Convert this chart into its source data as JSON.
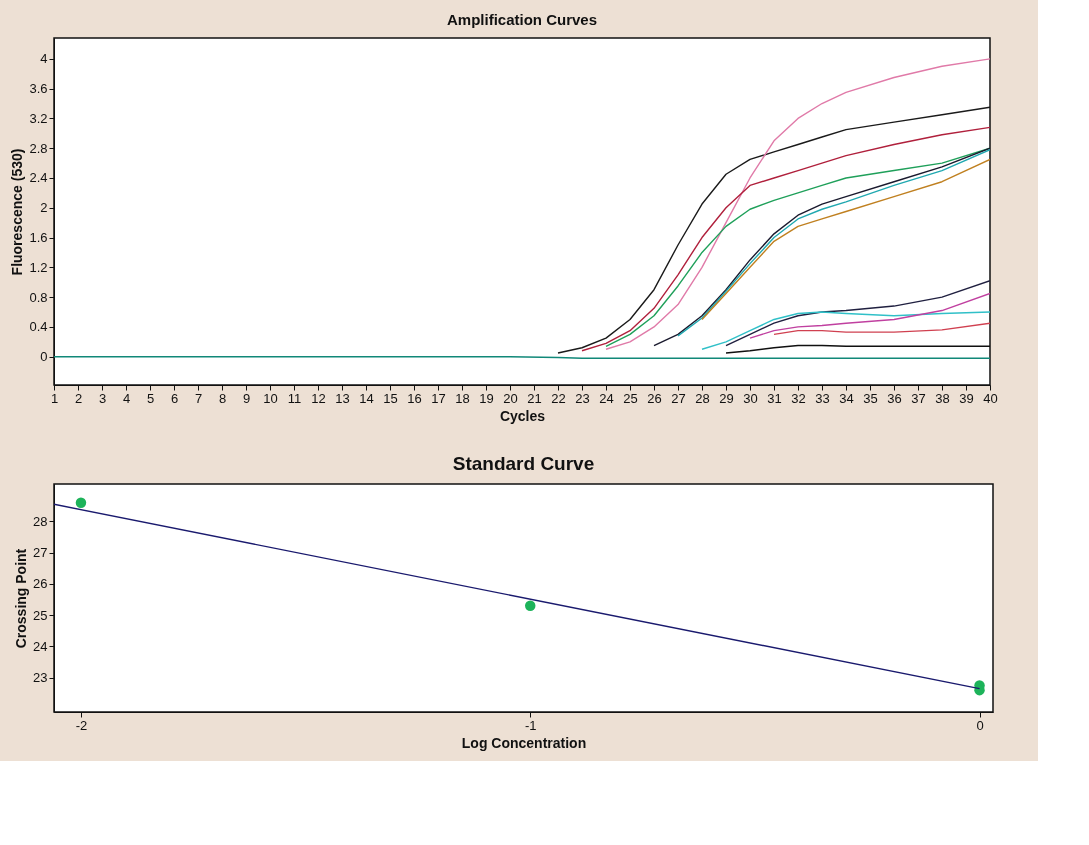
{
  "chart_data": [
    {
      "type": "line",
      "title": "Amplification Curves",
      "xlabel": "Cycles",
      "ylabel": "Fluorescence (530)",
      "xlim": [
        1,
        40
      ],
      "xticks": [
        1,
        2,
        3,
        4,
        5,
        6,
        7,
        8,
        9,
        10,
        11,
        12,
        13,
        14,
        15,
        16,
        17,
        18,
        19,
        20,
        21,
        22,
        23,
        24,
        25,
        26,
        27,
        28,
        29,
        30,
        31,
        32,
        33,
        34,
        35,
        36,
        37,
        38,
        39,
        40
      ],
      "ylim": [
        -0.38,
        4.28
      ],
      "yticks": [
        0,
        0.4,
        0.8,
        1.2,
        1.6,
        2,
        2.4,
        2.8,
        3.2,
        3.6,
        4
      ],
      "series": [
        {
          "color": "#1a1a1a",
          "x": [
            22,
            23,
            24,
            25,
            26,
            27,
            28,
            29,
            30,
            31,
            32,
            33,
            34,
            36,
            38,
            40
          ],
          "values": [
            0.05,
            0.12,
            0.25,
            0.5,
            0.9,
            1.5,
            2.05,
            2.45,
            2.65,
            2.75,
            2.85,
            2.95,
            3.05,
            3.15,
            3.25,
            3.35
          ]
        },
        {
          "color": "#e07aa8",
          "x": [
            24,
            25,
            26,
            27,
            28,
            29,
            30,
            31,
            32,
            33,
            34,
            36,
            38,
            40
          ],
          "values": [
            0.1,
            0.2,
            0.4,
            0.7,
            1.2,
            1.8,
            2.4,
            2.9,
            3.2,
            3.4,
            3.55,
            3.75,
            3.9,
            4.0
          ]
        },
        {
          "color": "#b0203c",
          "x": [
            23,
            24,
            25,
            26,
            27,
            28,
            29,
            30,
            31,
            32,
            33,
            34,
            36,
            38,
            40
          ],
          "values": [
            0.08,
            0.18,
            0.35,
            0.65,
            1.1,
            1.6,
            2.0,
            2.3,
            2.4,
            2.5,
            2.6,
            2.7,
            2.85,
            2.98,
            3.08
          ]
        },
        {
          "color": "#1fa05a",
          "x": [
            24,
            25,
            26,
            27,
            28,
            29,
            30,
            31,
            32,
            33,
            34,
            36,
            38,
            40
          ],
          "values": [
            0.14,
            0.3,
            0.55,
            0.95,
            1.4,
            1.75,
            1.98,
            2.1,
            2.2,
            2.3,
            2.4,
            2.5,
            2.6,
            2.8
          ]
        },
        {
          "color": "#1a1a2e",
          "x": [
            26,
            27,
            28,
            29,
            30,
            31,
            32,
            33,
            34,
            36,
            38,
            40
          ],
          "values": [
            0.15,
            0.3,
            0.55,
            0.9,
            1.3,
            1.65,
            1.9,
            2.05,
            2.15,
            2.35,
            2.55,
            2.8
          ]
        },
        {
          "color": "#20a8b0",
          "x": [
            27,
            28,
            29,
            30,
            31,
            32,
            33,
            34,
            36,
            38,
            40
          ],
          "values": [
            0.28,
            0.52,
            0.88,
            1.25,
            1.6,
            1.85,
            1.98,
            2.08,
            2.3,
            2.5,
            2.78
          ]
        },
        {
          "color": "#c08020",
          "x": [
            28,
            29,
            30,
            31,
            32,
            33,
            34,
            36,
            38,
            40
          ],
          "values": [
            0.5,
            0.85,
            1.2,
            1.55,
            1.75,
            1.85,
            1.95,
            2.15,
            2.35,
            2.65
          ]
        },
        {
          "color": "#202040",
          "x": [
            29,
            30,
            31,
            32,
            33,
            34,
            36,
            38,
            40
          ],
          "values": [
            0.15,
            0.3,
            0.45,
            0.55,
            0.6,
            0.62,
            0.68,
            0.8,
            1.02
          ]
        },
        {
          "color": "#30c0c8",
          "x": [
            28,
            29,
            30,
            31,
            32,
            33,
            34,
            36,
            38,
            40
          ],
          "values": [
            0.1,
            0.2,
            0.35,
            0.5,
            0.58,
            0.6,
            0.58,
            0.55,
            0.58,
            0.6
          ]
        },
        {
          "color": "#c040a0",
          "x": [
            30,
            31,
            32,
            33,
            34,
            36,
            38,
            40
          ],
          "values": [
            0.25,
            0.35,
            0.4,
            0.42,
            0.45,
            0.5,
            0.62,
            0.85
          ]
        },
        {
          "color": "#d04050",
          "x": [
            31,
            32,
            33,
            34,
            36,
            38,
            40
          ],
          "values": [
            0.3,
            0.35,
            0.35,
            0.33,
            0.33,
            0.36,
            0.45
          ]
        },
        {
          "color": "#101010",
          "x": [
            29,
            30,
            31,
            32,
            33,
            34,
            36,
            38,
            40
          ],
          "values": [
            0.05,
            0.08,
            0.12,
            0.15,
            0.15,
            0.14,
            0.14,
            0.14,
            0.14
          ]
        },
        {
          "color": "#108878",
          "x": [
            1,
            5,
            10,
            15,
            20,
            22,
            23,
            40
          ],
          "values": [
            0,
            0,
            0,
            0,
            0,
            -0.01,
            -0.02,
            -0.02
          ]
        }
      ]
    },
    {
      "type": "scatter",
      "title": "Standard Curve",
      "xlabel": "Log Concentration",
      "ylabel": "Crossing Point",
      "xlim": [
        -2.06,
        0.03
      ],
      "xticks": [
        -2,
        -1,
        0
      ],
      "ylim": [
        21.9,
        29.2
      ],
      "yticks": [
        23,
        24,
        25,
        26,
        27,
        28
      ],
      "series": [
        {
          "color": "#1db35a",
          "marker": "circle",
          "x": [
            -2,
            -1,
            0,
            0
          ],
          "values": [
            28.6,
            25.3,
            22.75,
            22.6
          ]
        },
        {
          "type": "line",
          "color": "#1a1a6e",
          "x": [
            -2.06,
            0
          ],
          "values": [
            28.55,
            22.65
          ]
        }
      ]
    }
  ]
}
